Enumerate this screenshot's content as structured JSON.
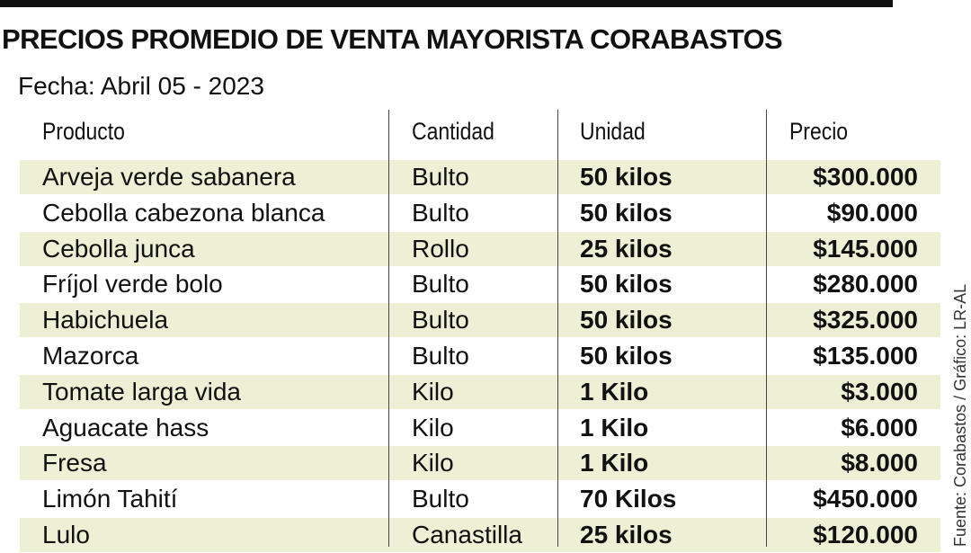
{
  "header": {
    "title": "PRECIOS PROMEDIO DE VENTA MAYORISTA CORABASTOS",
    "date": "Fecha: Abril 05 -  2023"
  },
  "table": {
    "columns": [
      "Producto",
      "Cantidad",
      "Unidad",
      "Precio"
    ],
    "rows": [
      [
        "Arveja verde sabanera",
        "Bulto",
        "50 kilos",
        "$300.000"
      ],
      [
        "Cebolla cabezona blanca",
        "Bulto",
        "50 kilos",
        "$90.000"
      ],
      [
        "Cebolla junca",
        "Rollo",
        "25 kilos",
        "$145.000"
      ],
      [
        "Fríjol verde bolo",
        "Bulto",
        "50 kilos",
        "$280.000"
      ],
      [
        "Habichuela",
        "Bulto",
        "50 kilos",
        "$325.000"
      ],
      [
        "Mazorca",
        "Bulto",
        "50 kilos",
        "$135.000"
      ],
      [
        "Tomate larga vida",
        "Kilo",
        "1 Kilo",
        "$3.000"
      ],
      [
        "Aguacate hass",
        "Kilo",
        "1 Kilo",
        "$6.000"
      ],
      [
        "Fresa",
        "Kilo",
        "1 Kilo",
        "$8.000"
      ],
      [
        "Limón Tahití",
        "Bulto",
        "70 Kilos",
        "$450.000"
      ],
      [
        "Lulo",
        "Canastilla",
        "25 kilos",
        "$120.000"
      ]
    ]
  },
  "source": "Fuente: Corabastos / Gráfico: LR-AL"
}
